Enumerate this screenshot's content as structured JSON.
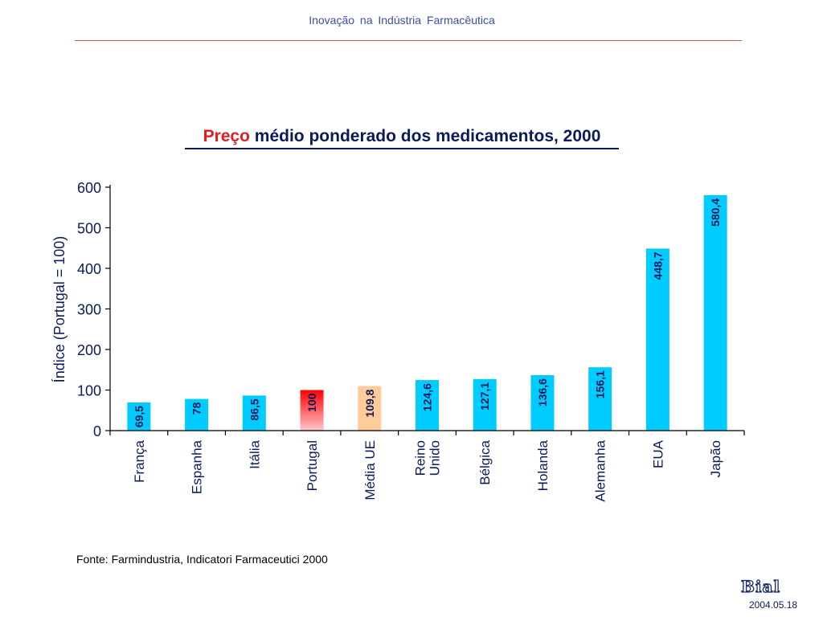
{
  "header": {
    "title": "Inovação  na  Indústria  Farmacêutica"
  },
  "title_accent": "Preço",
  "title_rest": " médio ponderado dos medicamentos, 2000",
  "source": "Fonte: Farmindustria, Indicatori Farmaceutici 2000",
  "logo_text": "Bial",
  "date": "2004.05.18",
  "colors": {
    "bar": "#00ccff",
    "portugal_top": "#ff0000",
    "portugal_bottom": "#ffc6cc",
    "media_ue": "#ffcc99",
    "text": "#0c1a5a",
    "accent": "#e41e1e",
    "rule": "#d9534f"
  },
  "chart_data": {
    "type": "bar",
    "title": "Preço médio ponderado dos medicamentos, 2000",
    "xlabel": "",
    "ylabel": "Índice (Portugal = 100)",
    "ylim": [
      0,
      600
    ],
    "yticks": [
      0,
      100,
      200,
      300,
      400,
      500,
      600
    ],
    "grid": false,
    "categories": [
      "França",
      "Espanha",
      "Itália",
      "Portugal",
      "Média UE",
      "Reino Unido",
      "Bélgica",
      "Holanda",
      "Alemanha",
      "EUA",
      "Japão"
    ],
    "category_lines": [
      [
        "França"
      ],
      [
        "Espanha"
      ],
      [
        "Itália"
      ],
      [
        "Portugal"
      ],
      [
        "Média UE"
      ],
      [
        "Reino",
        "Unido"
      ],
      [
        "Bélgica"
      ],
      [
        "Holanda"
      ],
      [
        "Alemanha"
      ],
      [
        "EUA"
      ],
      [
        "Japão"
      ]
    ],
    "values": [
      69.5,
      78,
      86.5,
      100,
      109.8,
      124.6,
      127.1,
      136.6,
      156.1,
      448.7,
      580.4
    ],
    "value_labels": [
      "69,5",
      "78",
      "86,5",
      "100",
      "109,8",
      "124,6",
      "127,1",
      "136,6",
      "156,1",
      "448,7",
      "580,4"
    ],
    "highlight": {
      "Portugal": "gradient-red",
      "Média UE": "peach"
    }
  }
}
